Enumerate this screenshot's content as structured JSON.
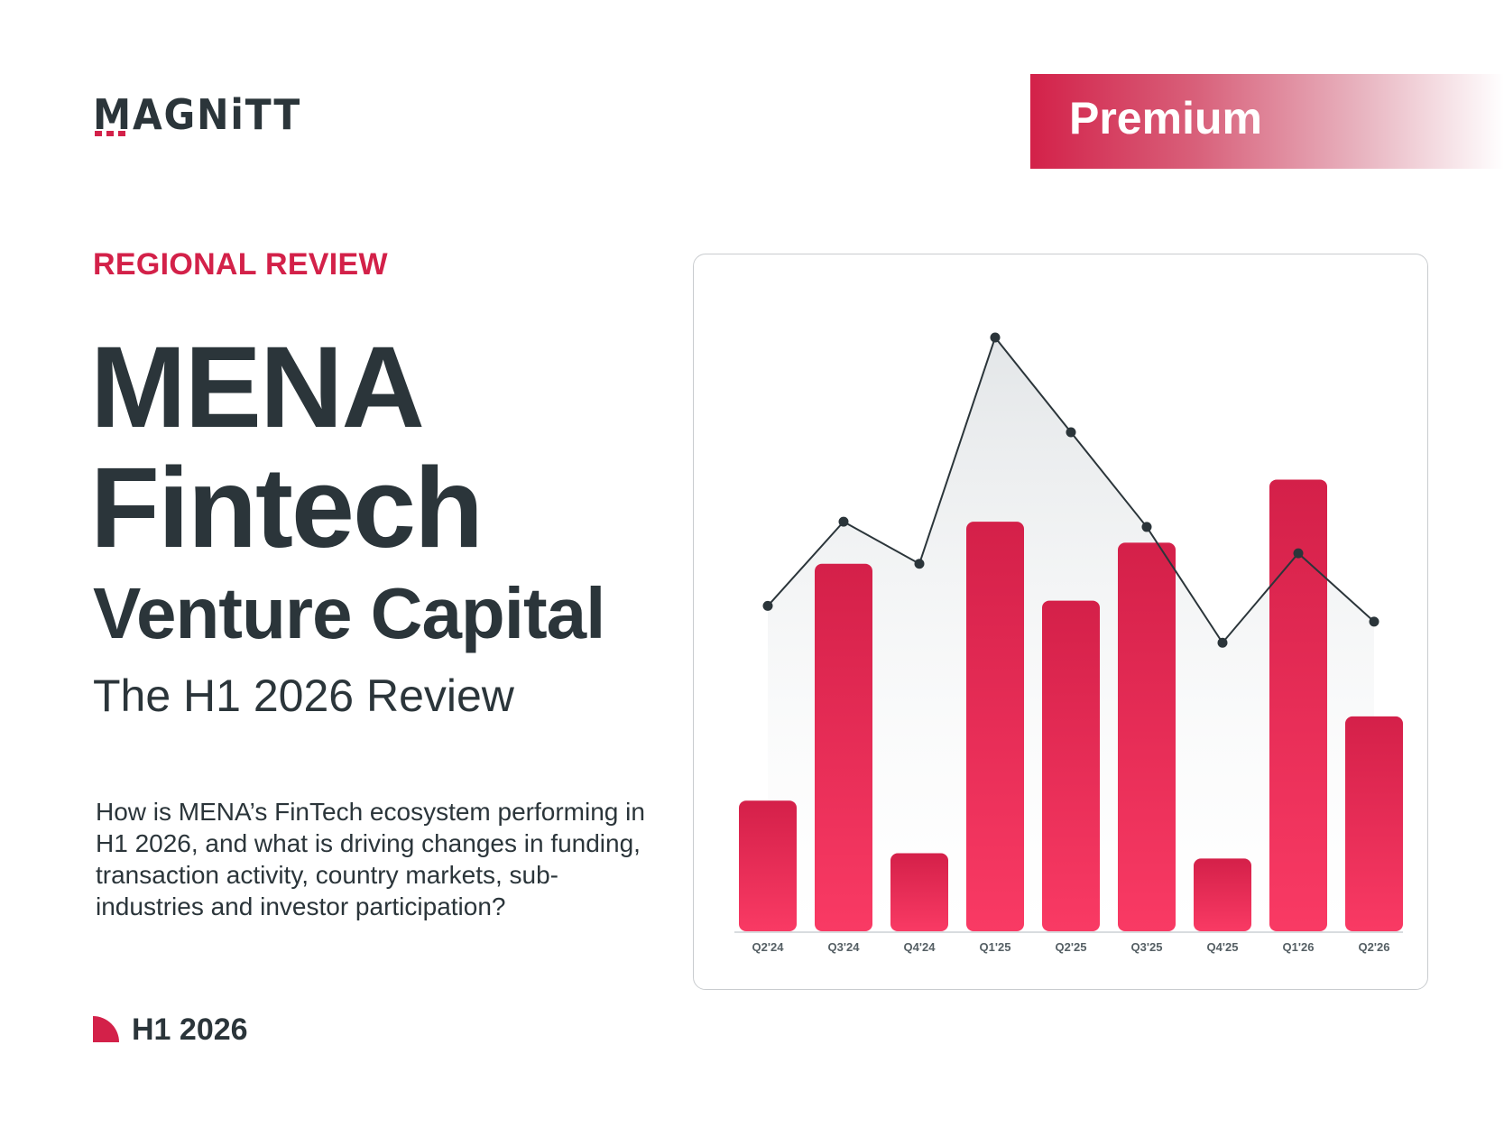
{
  "brand": {
    "logo_text": "MAGNiTT",
    "badge": "Premium"
  },
  "hero": {
    "eyebrow": "REGIONAL REVIEW",
    "title_line1": "MENA",
    "title_line2": "Fintech",
    "title_line3": "Venture Capital",
    "subtitle": "The H1 2026 Review",
    "description": "How is MENA’s FinTech ecosystem performing in H1 2026, and what is driving changes in funding, transaction activity, country markets, sub-industries and investor participation?"
  },
  "footer": {
    "period": "H1 2026"
  },
  "colors": {
    "accent": "#d32149",
    "text": "#2b353a"
  },
  "chart_data": {
    "type": "bar",
    "categories": [
      "Q2'24",
      "Q3'24",
      "Q4'24",
      "Q1'25",
      "Q2'25",
      "Q3'25",
      "Q4'25",
      "Q1'26",
      "Q2'26"
    ],
    "series": [
      {
        "type": "bar",
        "values": [
          25,
          70,
          15,
          78,
          63,
          74,
          14,
          86,
          41
        ]
      },
      {
        "type": "line",
        "values": [
          62,
          78,
          70,
          113,
          95,
          77,
          55,
          72,
          59
        ]
      }
    ],
    "ylim": [
      0,
      125
    ],
    "grid": false,
    "legend": "none"
  }
}
